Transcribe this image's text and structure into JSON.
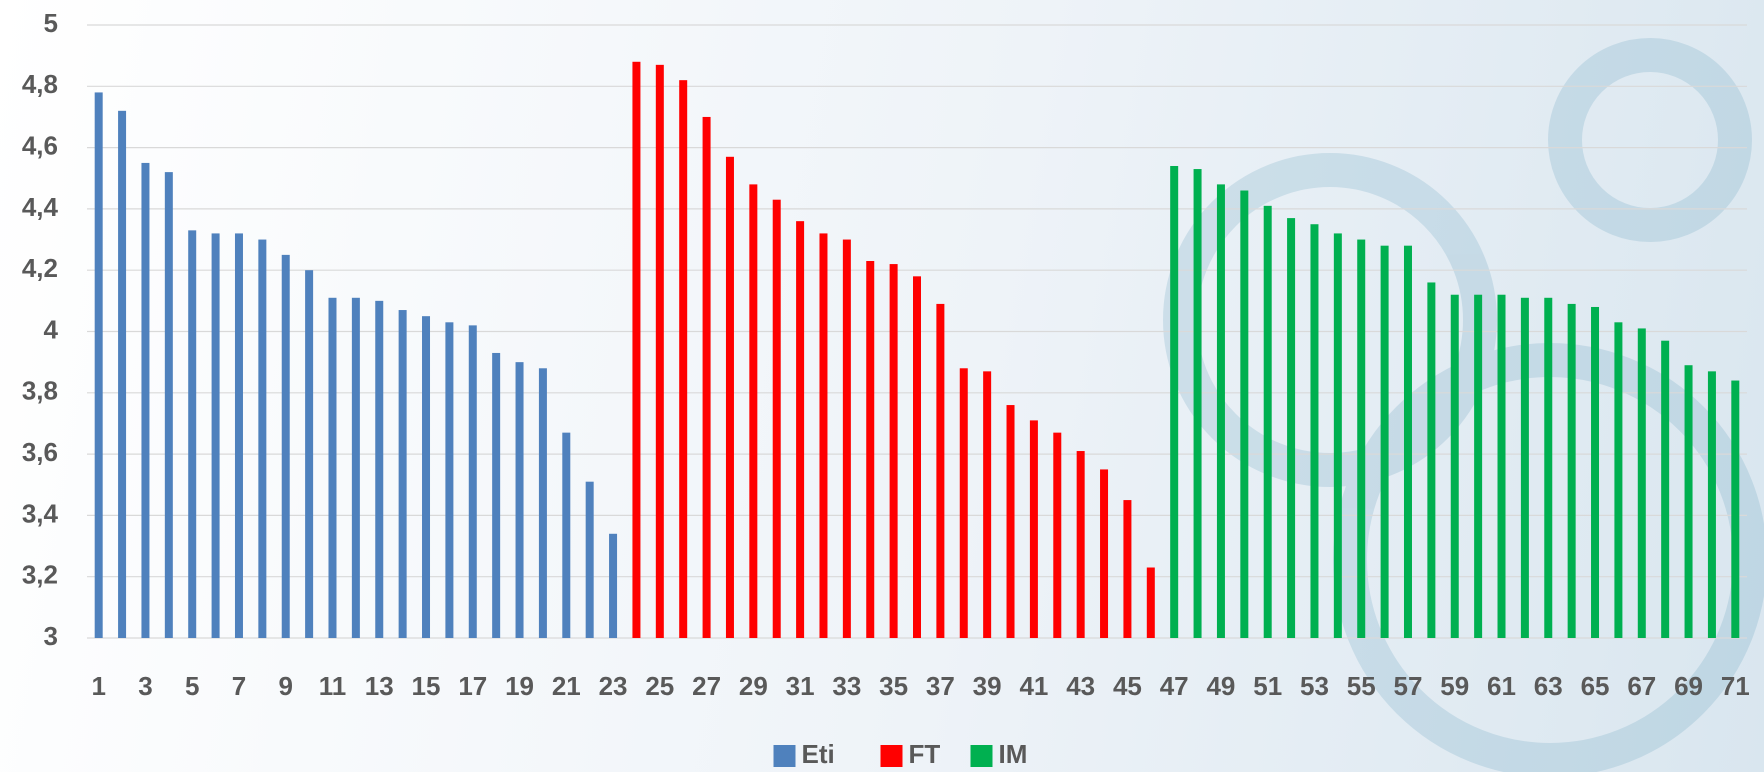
{
  "chart_data": {
    "type": "bar",
    "categories": [
      "1",
      null,
      "3",
      null,
      "5",
      null,
      "7",
      null,
      "9",
      null,
      "11",
      null,
      "13",
      null,
      "15",
      null,
      "17",
      null,
      "19",
      null,
      "21",
      null,
      "23",
      null,
      "25",
      null,
      "27",
      null,
      "29",
      null,
      "31",
      null,
      "33",
      null,
      "35",
      null,
      "37",
      null,
      "39",
      null,
      "41",
      null,
      "43",
      null,
      "45",
      null,
      "47",
      null,
      "49",
      null,
      "51",
      null,
      "53",
      null,
      "55",
      null,
      "57",
      null,
      "59",
      null,
      "61",
      null,
      "63",
      null,
      "65",
      null,
      "67",
      null,
      "69",
      null,
      "71"
    ],
    "series": [
      {
        "name": "Eti",
        "color": "#4f81bd",
        "values": [
          4.78,
          4.72,
          4.55,
          4.52,
          4.33,
          4.32,
          4.32,
          4.3,
          4.25,
          4.2,
          4.11,
          4.11,
          4.1,
          4.07,
          4.05,
          4.03,
          4.02,
          3.93,
          3.9,
          3.88,
          3.67,
          3.51,
          3.34,
          null,
          null,
          null,
          null,
          null,
          null,
          null,
          null,
          null,
          null,
          null,
          null,
          null,
          null,
          null,
          null,
          null,
          null,
          null,
          null,
          null,
          null,
          null,
          null,
          null,
          null,
          null,
          null,
          null,
          null,
          null,
          null,
          null,
          null,
          null,
          null,
          null,
          null,
          null,
          null,
          null,
          null,
          null,
          null,
          null,
          null,
          null,
          null
        ]
      },
      {
        "name": "FT",
        "color": "#ff0000",
        "values": [
          null,
          null,
          null,
          null,
          null,
          null,
          null,
          null,
          null,
          null,
          null,
          null,
          null,
          null,
          null,
          null,
          null,
          null,
          null,
          null,
          null,
          null,
          null,
          4.88,
          4.87,
          4.82,
          4.7,
          4.57,
          4.48,
          4.43,
          4.36,
          4.32,
          4.3,
          4.23,
          4.22,
          4.18,
          4.09,
          3.88,
          3.87,
          3.76,
          3.71,
          3.67,
          3.61,
          3.55,
          3.45,
          3.23,
          null,
          null,
          null,
          null,
          null,
          null,
          null,
          null,
          null,
          null,
          null,
          null,
          null,
          null,
          null,
          null,
          null,
          null,
          null,
          null,
          null,
          null,
          null,
          null,
          null
        ]
      },
      {
        "name": "IM",
        "color": "#00b050",
        "values": [
          null,
          null,
          null,
          null,
          null,
          null,
          null,
          null,
          null,
          null,
          null,
          null,
          null,
          null,
          null,
          null,
          null,
          null,
          null,
          null,
          null,
          null,
          null,
          null,
          null,
          null,
          null,
          null,
          null,
          null,
          null,
          null,
          null,
          null,
          null,
          null,
          null,
          null,
          null,
          null,
          null,
          null,
          null,
          null,
          null,
          null,
          4.54,
          4.53,
          4.48,
          4.46,
          4.41,
          4.37,
          4.35,
          4.32,
          4.3,
          4.28,
          4.28,
          4.16,
          4.12,
          4.12,
          4.12,
          4.11,
          4.11,
          4.09,
          4.08,
          4.03,
          4.01,
          3.97,
          3.89,
          3.87,
          3.84
        ]
      }
    ],
    "ylim": [
      3,
      5
    ],
    "yticks": [
      3,
      {
        "value": 3.2,
        "label": "3,2"
      },
      {
        "value": 3.4,
        "label": "3,4"
      },
      {
        "value": 3.6,
        "label": "3,6"
      },
      {
        "value": 3.8,
        "label": "3,8"
      },
      4,
      {
        "value": 4.2,
        "label": "4,2"
      },
      {
        "value": 4.4,
        "label": "4,4"
      },
      {
        "value": 4.6,
        "label": "4,6"
      },
      {
        "value": 4.8,
        "label": "4,8"
      },
      5
    ],
    "grid": true,
    "legend": "bottom"
  }
}
